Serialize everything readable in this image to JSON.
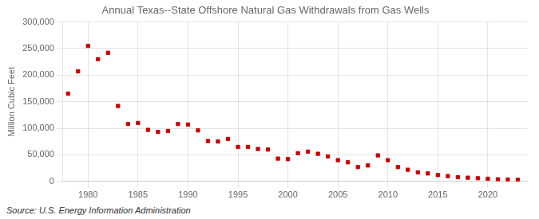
{
  "chart_data": {
    "type": "scatter",
    "title": "Annual Texas--State Offshore Natural Gas Withdrawals from Gas Wells",
    "ylabel": "Million Cubic Feet",
    "annotations": [
      "Source: U.S. Energy Information Administration"
    ],
    "x": [
      1978,
      1979,
      1980,
      1981,
      1982,
      1983,
      1984,
      1985,
      1986,
      1987,
      1988,
      1989,
      1990,
      1991,
      1992,
      1993,
      1994,
      1995,
      1996,
      1997,
      1998,
      1999,
      2000,
      2001,
      2002,
      2003,
      2004,
      2005,
      2006,
      2007,
      2008,
      2009,
      2010,
      2011,
      2012,
      2013,
      2014,
      2015,
      2016,
      2017,
      2018,
      2019,
      2020,
      2021,
      2022,
      2023
    ],
    "values": [
      165000,
      207000,
      255000,
      230000,
      242000,
      142000,
      108000,
      110000,
      97000,
      93000,
      95000,
      108000,
      107000,
      96000,
      76000,
      75000,
      80000,
      65000,
      65000,
      61000,
      60000,
      43000,
      42000,
      53000,
      56000,
      52000,
      47000,
      40000,
      36000,
      27000,
      30000,
      49000,
      40000,
      27000,
      22000,
      17000,
      15000,
      12000,
      10000,
      8000,
      7000,
      6000,
      5000,
      4000,
      3500,
      3000
    ],
    "color": "#cc0000",
    "marker": "square",
    "xlim": [
      1977.5,
      2024
    ],
    "xticks": [
      1980,
      1985,
      1990,
      1995,
      2000,
      2005,
      2010,
      2015,
      2020
    ],
    "ylim": [
      0,
      300000
    ],
    "yticks": [
      0,
      {
        "value": 50000,
        "label": "50,000"
      },
      {
        "value": 100000,
        "label": "100,000"
      },
      {
        "value": 150000,
        "label": "150,000"
      },
      {
        "value": 200000,
        "label": "200,000"
      },
      {
        "value": 250000,
        "label": "250,000"
      },
      {
        "value": 300000,
        "label": "300,000"
      }
    ],
    "grid": true
  }
}
